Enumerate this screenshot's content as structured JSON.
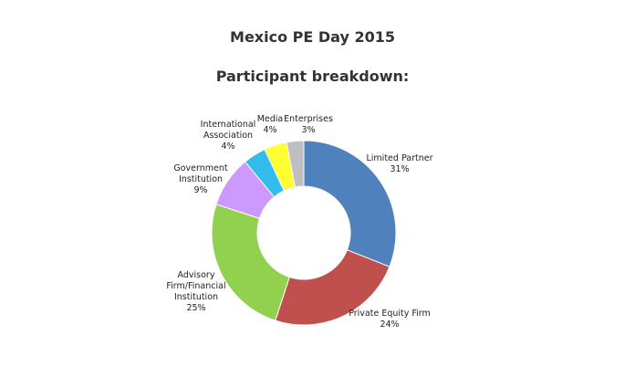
{
  "page": {
    "title": "Mexico PE Day 2015",
    "subtitle": "Participant breakdown:"
  },
  "chart_data": {
    "type": "pie",
    "variant": "donut",
    "title": "Mexico PE Day 2015",
    "subtitle": "Participant breakdown:",
    "legend": "none",
    "slices": [
      {
        "name": "Limited Partner",
        "value": 31,
        "value_label": "31%",
        "color": "#4f81bd"
      },
      {
        "name": "Private Equity Firm",
        "value": 24,
        "value_label": "24%",
        "color": "#c0504d"
      },
      {
        "name": "Advisory Firm/Financial Institution",
        "value": 25,
        "value_label": "25%",
        "color": "#92d050"
      },
      {
        "name": "Government Institution",
        "value": 9,
        "value_label": "9%",
        "color": "#cc99ff"
      },
      {
        "name": "International Association",
        "value": 4,
        "value_label": "4%",
        "color": "#33bbee"
      },
      {
        "name": "Media",
        "value": 4,
        "value_label": "4%",
        "color": "#ffff33"
      },
      {
        "name": "Enterprises",
        "value": 3,
        "value_label": "3%",
        "color": "#bfbfbf"
      }
    ]
  }
}
